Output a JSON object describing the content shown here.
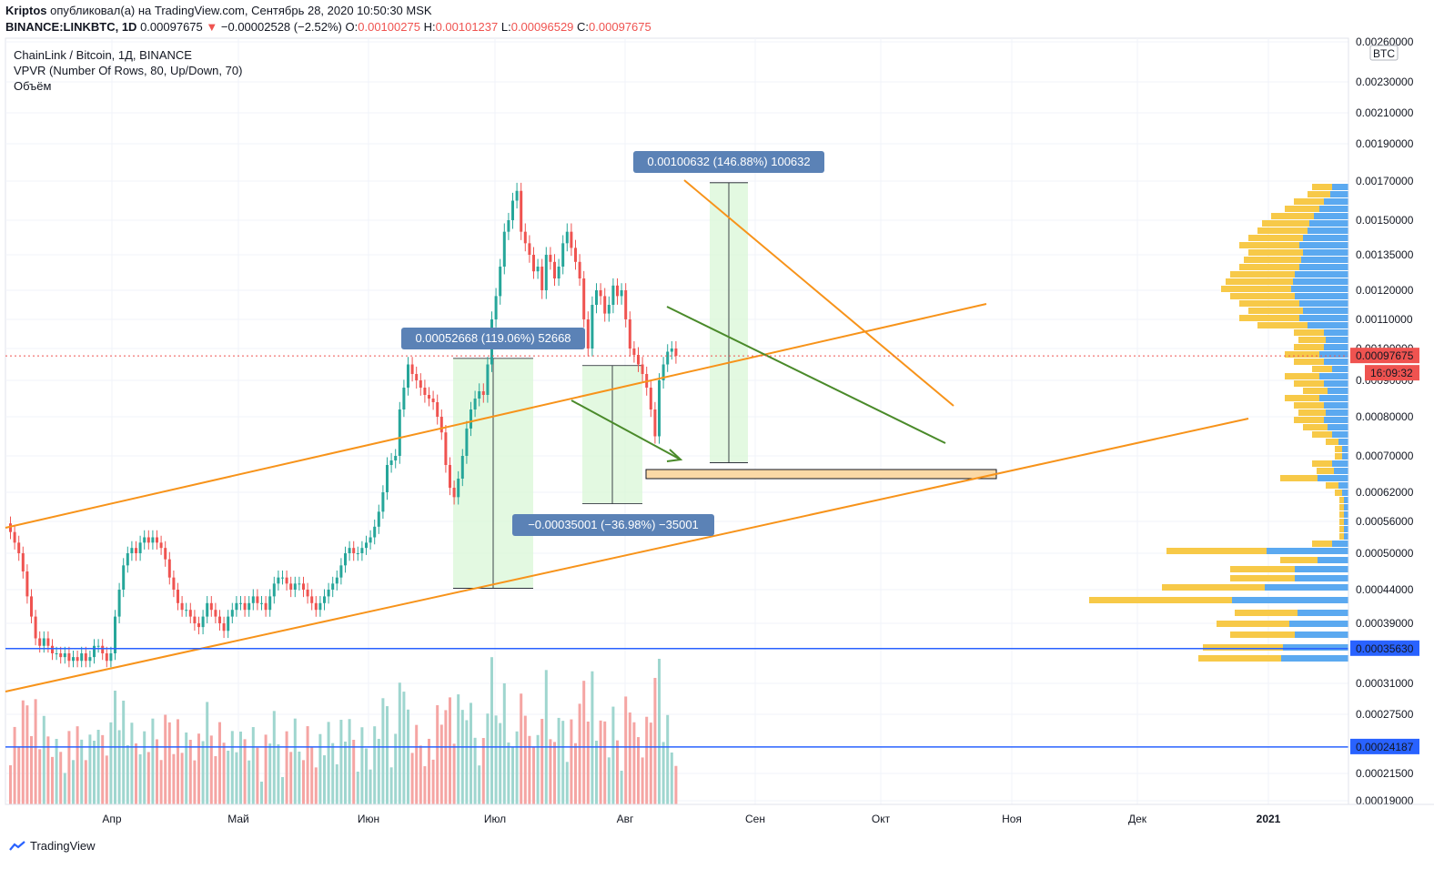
{
  "header": {
    "author": "Kriptos",
    "published_text": " опубликовал(а) на TradingView.com, Сентябрь 28, 2020 10:50:30 MSK",
    "symbol": "BINANCE:LINKBTC, 1D",
    "last": "0.00097675",
    "change_arrow": "▼",
    "change": "−0.00002528 (−2.52%)",
    "o_label": "O:",
    "o": "0.00100275",
    "h_label": "H:",
    "h": "0.00101237",
    "l_label": "L:",
    "l": "0.00096529",
    "c_label": "C:",
    "c": "0.00097675"
  },
  "legend": {
    "title": "ChainLink / Bitcoin, 1Д, BINANCE",
    "vpvr": "VPVR (Number Of Rows, 80, Up/Down, 70)",
    "volume": "Объём"
  },
  "chart_data": {
    "type": "candlestick",
    "symbol": "LINKBTC",
    "timeframe": "1D",
    "currency": "BTC",
    "x_ticks": [
      "Апр",
      "Май",
      "Июн",
      "Июл",
      "Авг",
      "Сен",
      "Окт",
      "Ноя",
      "Дек",
      "2021"
    ],
    "y_ticks": [
      "0.00260000",
      "0.00230000",
      "0.00210000",
      "0.00190000",
      "0.00170000",
      "0.00150000",
      "0.00135000",
      "0.00120000",
      "0.00110000",
      "0.00100000",
      "0.00090000",
      "0.00080000",
      "0.00070000",
      "0.00062000",
      "0.00056000",
      "0.00050000",
      "0.00044000",
      "0.00039000",
      "0.00031000",
      "0.00027500",
      "0.00021500",
      "0.00019000"
    ],
    "price_labels": [
      {
        "value": "0.00097675",
        "color": "#ef5350"
      },
      {
        "value": "16:09:32",
        "color": "#ef5350"
      },
      {
        "value": "0.00035630",
        "color": "#2962ff"
      },
      {
        "value": "0.00024187",
        "color": "#2962ff"
      }
    ],
    "horizontal_lines": [
      0.0003563,
      0.00024187
    ],
    "last_price": 0.00097675,
    "measurements": [
      {
        "text": "0.00052668 (119.06%) 52668",
        "from": 0.00044233,
        "to": 0.00096901
      },
      {
        "text": "−0.00035001 (−36.98%) −35001",
        "from": 0.00094651,
        "to": 0.0005965
      },
      {
        "text": "0.00100632 (146.88%) 100632",
        "from": 0.00068515,
        "to": 0.00169147
      }
    ],
    "support_zone": [
      0.00065,
      0.00067
    ]
  },
  "colors": {
    "up": "#26a69a",
    "down": "#ef5350",
    "up_vol": "#9fd6cf",
    "down_vol": "#f5a5a3",
    "orange": "#f7931a",
    "green_line": "#4a8a2a",
    "blue_line": "#2962ff",
    "measure": "#5b82b6"
  },
  "branding": {
    "text": "TradingView"
  }
}
